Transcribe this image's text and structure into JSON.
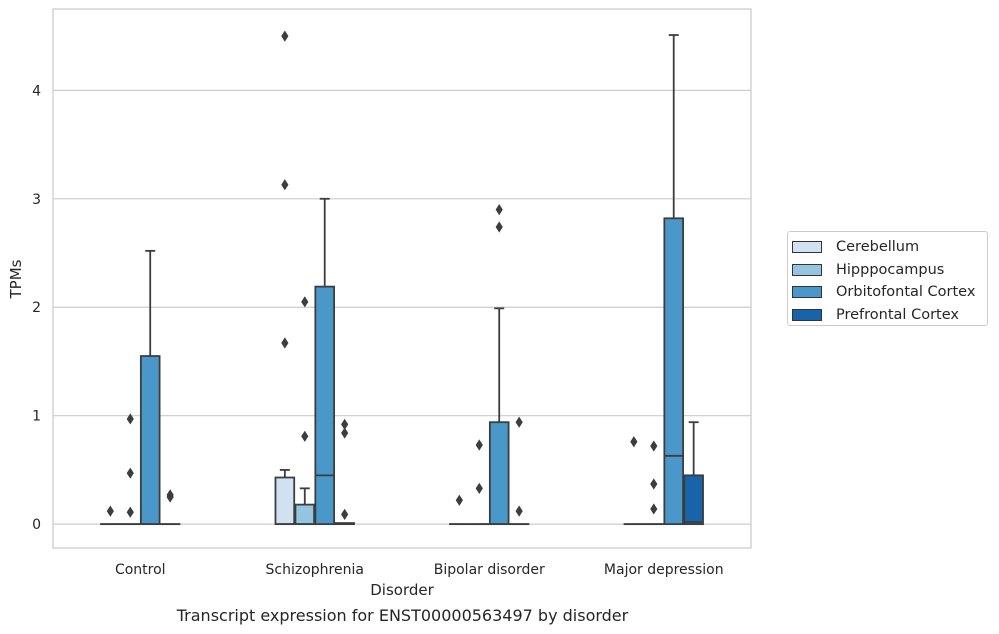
{
  "caption": "Transcript expression for ENST00000563497 by disorder",
  "legend": {
    "items": [
      {
        "label": "Cerebellum",
        "color": "#d0e1f2"
      },
      {
        "label": "Hipppocampus",
        "color": "#94c4df"
      },
      {
        "label": "Orbitofontal Cortex",
        "color": "#4a98c9"
      },
      {
        "label": "Prefrontal Cortex",
        "color": "#1764ab"
      }
    ]
  },
  "chart_data": {
    "type": "box",
    "xlabel": "Disorder",
    "ylabel": "TPMs",
    "categories": [
      "Control",
      "Schizophrenia",
      "Bipolar disorder",
      "Major depression"
    ],
    "ylim": [
      -0.22,
      4.75
    ],
    "yticks": [
      0,
      1,
      2,
      3,
      4
    ],
    "grid": true,
    "legend_position": "right",
    "series": [
      {
        "name": "Cerebellum",
        "color": "#d0e1f2",
        "boxes": [
          {
            "q1": 0,
            "median": 0,
            "q3": 0,
            "whisker_low": 0,
            "whisker_high": 0,
            "outliers": [
              0.12
            ]
          },
          {
            "q1": 0,
            "median": 0,
            "q3": 0.43,
            "whisker_low": 0,
            "whisker_high": 0.5,
            "outliers": [
              4.5,
              3.13,
              1.67
            ]
          },
          {
            "q1": 0,
            "median": 0,
            "q3": 0,
            "whisker_low": 0,
            "whisker_high": 0,
            "outliers": [
              0.22
            ]
          },
          {
            "q1": 0,
            "median": 0,
            "q3": 0,
            "whisker_low": 0,
            "whisker_high": 0,
            "outliers": [
              0.76
            ]
          }
        ]
      },
      {
        "name": "Hipppocampus",
        "color": "#94c4df",
        "boxes": [
          {
            "q1": 0,
            "median": 0,
            "q3": 0,
            "whisker_low": 0,
            "whisker_high": 0,
            "outliers": [
              0.97,
              0.47,
              0.11
            ]
          },
          {
            "q1": 0,
            "median": 0,
            "q3": 0.18,
            "whisker_low": 0,
            "whisker_high": 0.33,
            "outliers": [
              2.05,
              0.81
            ]
          },
          {
            "q1": 0,
            "median": 0,
            "q3": 0,
            "whisker_low": 0,
            "whisker_high": 0,
            "outliers": [
              0.73,
              0.33
            ]
          },
          {
            "q1": 0,
            "median": 0,
            "q3": 0,
            "whisker_low": 0,
            "whisker_high": 0,
            "outliers": [
              0.72,
              0.37,
              0.14
            ]
          }
        ]
      },
      {
        "name": "Orbitofontal Cortex",
        "color": "#4a98c9",
        "boxes": [
          {
            "q1": 0,
            "median": 0,
            "q3": 1.55,
            "whisker_low": 0,
            "whisker_high": 2.52,
            "outliers": []
          },
          {
            "q1": 0,
            "median": 0.45,
            "q3": 2.19,
            "whisker_low": 0,
            "whisker_high": 3.0,
            "outliers": []
          },
          {
            "q1": 0,
            "median": 0,
            "q3": 0.94,
            "whisker_low": 0,
            "whisker_high": 1.99,
            "outliers": [
              2.9,
              2.74
            ]
          },
          {
            "q1": 0,
            "median": 0.63,
            "q3": 2.82,
            "whisker_low": 0,
            "whisker_high": 4.51,
            "outliers": []
          }
        ]
      },
      {
        "name": "Prefrontal Cortex",
        "color": "#1764ab",
        "boxes": [
          {
            "q1": 0,
            "median": 0,
            "q3": 0,
            "whisker_low": 0,
            "whisker_high": 0,
            "outliers": [
              0.27,
              0.25
            ]
          },
          {
            "q1": 0,
            "median": 0,
            "q3": 0.01,
            "whisker_low": 0,
            "whisker_high": 0.01,
            "outliers": [
              0.92,
              0.84,
              0.09
            ]
          },
          {
            "q1": 0,
            "median": 0,
            "q3": 0,
            "whisker_low": 0,
            "whisker_high": 0,
            "outliers": [
              0.94,
              0.12
            ]
          },
          {
            "q1": 0,
            "median": 0.02,
            "q3": 0.45,
            "whisker_low": 0,
            "whisker_high": 0.94,
            "outliers": []
          }
        ]
      }
    ]
  }
}
